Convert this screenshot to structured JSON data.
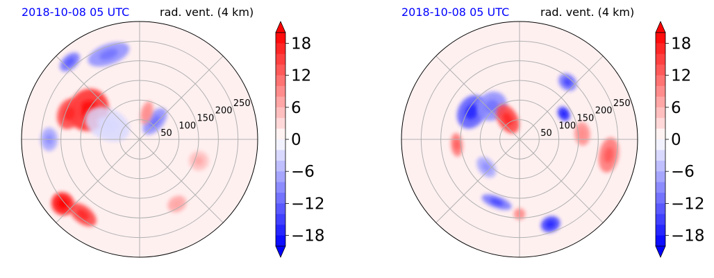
{
  "colors": {
    "date_title": "#0000ff",
    "variable_title": "#000000",
    "grid": "#b0b0b0",
    "background_disk": "#fff0f0",
    "positive_max": "#ff0000",
    "negative_max": "#0000ff",
    "zero": "#ffffff"
  },
  "chart_data": [
    {
      "type": "heatmap",
      "projection": "polar",
      "title_left": "2018-10-08 05 UTC",
      "title_right": "rad. vent. (4 km)",
      "radial_ticks": [
        50,
        100,
        150,
        200,
        250
      ],
      "radial_max": 300,
      "angular_gridlines_deg": [
        0,
        45,
        90,
        135,
        180,
        225,
        270,
        315
      ],
      "colorbar": {
        "ticks": [
          18,
          12,
          6,
          0,
          -6,
          -12,
          -18
        ],
        "tick_labels": [
          "18",
          "12",
          "6",
          "0",
          "−6",
          "−12",
          "−18"
        ],
        "vmin": -20,
        "vmax": 20,
        "levels": 20,
        "extend": "both",
        "cmap": "bwr"
      },
      "blobs": [
        {
          "az": 300,
          "r": 150,
          "rr": 55,
          "ra": 50,
          "v": 16
        },
        {
          "az": 290,
          "r": 190,
          "rr": 40,
          "ra": 30,
          "v": 14
        },
        {
          "az": 230,
          "r": 255,
          "rr": 30,
          "ra": 28,
          "v": 18
        },
        {
          "az": 217,
          "r": 240,
          "rr": 40,
          "ra": 22,
          "v": 14
        },
        {
          "az": 340,
          "r": 230,
          "rr": 55,
          "ra": 26,
          "v": -9
        },
        {
          "az": 318,
          "r": 265,
          "rr": 30,
          "ra": 18,
          "v": -11
        },
        {
          "az": 270,
          "r": 230,
          "rr": 30,
          "ra": 22,
          "v": -8
        },
        {
          "az": 40,
          "r": 60,
          "rr": 22,
          "ra": 40,
          "v": -10
        },
        {
          "az": 15,
          "r": 70,
          "rr": 15,
          "ra": 30,
          "v": 8
        },
        {
          "az": 110,
          "r": 160,
          "rr": 25,
          "ra": 25,
          "v": 5
        },
        {
          "az": 295,
          "r": 90,
          "rr": 40,
          "ra": 60,
          "v": -3
        },
        {
          "az": 150,
          "r": 190,
          "rr": 25,
          "ra": 20,
          "v": 6
        }
      ]
    },
    {
      "type": "heatmap",
      "projection": "polar",
      "title_left": "2018-10-08 05 UTC",
      "title_right": "rad. vent. (4 km)",
      "radial_ticks": [
        50,
        100,
        150,
        200,
        250
      ],
      "radial_max": 300,
      "angular_gridlines_deg": [
        0,
        45,
        90,
        135,
        180,
        225,
        270,
        315
      ],
      "colorbar": {
        "ticks": [
          18,
          12,
          6,
          0,
          -6,
          -12,
          -18
        ],
        "tick_labels": [
          "18",
          "12",
          "6",
          "0",
          "−6",
          "−12",
          "−18"
        ],
        "vmin": -20,
        "vmax": 20,
        "levels": 20,
        "extend": "both",
        "cmap": "bwr"
      },
      "blobs": [
        {
          "az": 300,
          "r": 140,
          "rr": 45,
          "ra": 35,
          "v": -14
        },
        {
          "az": 320,
          "r": 110,
          "rr": 40,
          "ra": 35,
          "v": -10
        },
        {
          "az": 60,
          "r": 130,
          "rr": 20,
          "ra": 15,
          "v": -16
        },
        {
          "az": 40,
          "r": 190,
          "rr": 25,
          "ra": 20,
          "v": -12
        },
        {
          "az": 100,
          "r": 230,
          "rr": 45,
          "ra": 25,
          "v": 10
        },
        {
          "az": 85,
          "r": 160,
          "rr": 30,
          "ra": 20,
          "v": 8
        },
        {
          "az": 200,
          "r": 170,
          "rr": 40,
          "ra": 15,
          "v": -12
        },
        {
          "az": 160,
          "r": 230,
          "rr": 25,
          "ra": 20,
          "v": -15
        },
        {
          "az": 265,
          "r": 160,
          "rr": 30,
          "ra": 15,
          "v": 10
        },
        {
          "az": 230,
          "r": 110,
          "rr": 30,
          "ra": 20,
          "v": -8
        },
        {
          "az": 330,
          "r": 60,
          "rr": 25,
          "ra": 40,
          "v": 14
        },
        {
          "az": 180,
          "r": 190,
          "rr": 15,
          "ra": 15,
          "v": 8
        }
      ]
    }
  ]
}
